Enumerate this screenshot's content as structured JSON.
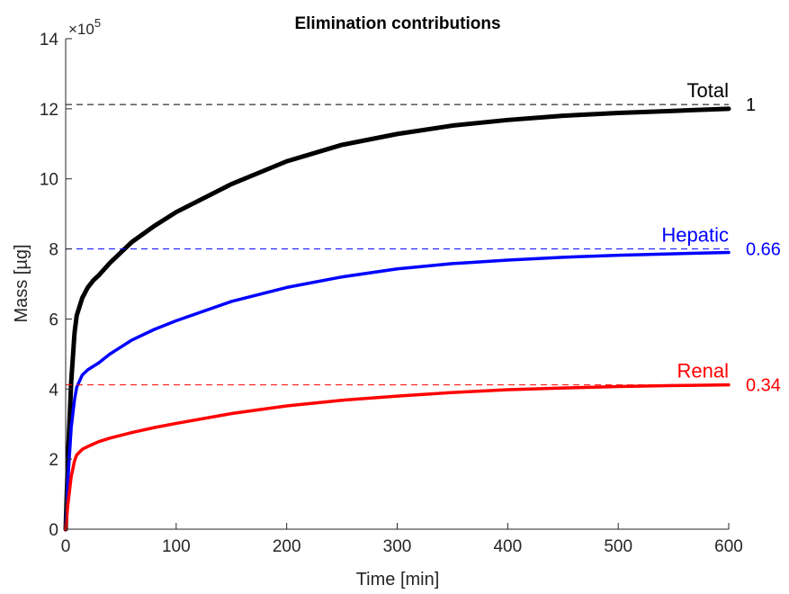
{
  "chart_data": {
    "type": "line",
    "title": "Elimination contributions",
    "xlabel": "Time [min]",
    "ylabel": "Mass [µg]",
    "xlim": [
      0,
      600
    ],
    "ylim": [
      0,
      1400000
    ],
    "x_ticks": [
      0,
      100,
      200,
      300,
      400,
      500,
      600
    ],
    "y_ticks": [
      0,
      2,
      4,
      6,
      8,
      10,
      12,
      14
    ],
    "y_tick_multiplier": "×10",
    "y_tick_exponent": "5",
    "grid": false,
    "series": [
      {
        "name": "Total",
        "color": "#000000",
        "fraction_label": "1",
        "asymptote": 1212000,
        "x": [
          0,
          2,
          5,
          8,
          10,
          15,
          20,
          25,
          30,
          40,
          50,
          60,
          80,
          100,
          150,
          200,
          250,
          300,
          350,
          400,
          450,
          500,
          550,
          600
        ],
        "y": [
          0,
          200000,
          420000,
          560000,
          610000,
          660000,
          690000,
          710000,
          725000,
          760000,
          790000,
          820000,
          865000,
          905000,
          985000,
          1050000,
          1097000,
          1128000,
          1152000,
          1168000,
          1180000,
          1188000,
          1194000,
          1200000
        ]
      },
      {
        "name": "Hepatic",
        "color": "#0000ff",
        "fraction_label": "0.66",
        "asymptote": 800000,
        "x": [
          0,
          2,
          5,
          8,
          10,
          15,
          20,
          25,
          30,
          40,
          50,
          60,
          80,
          100,
          150,
          200,
          250,
          300,
          350,
          400,
          450,
          500,
          550,
          600
        ],
        "y": [
          0,
          140000,
          290000,
          370000,
          405000,
          440000,
          455000,
          465000,
          475000,
          500000,
          520000,
          540000,
          570000,
          595000,
          650000,
          690000,
          720000,
          743000,
          758000,
          768000,
          776000,
          782000,
          786000,
          790000
        ]
      },
      {
        "name": "Renal",
        "color": "#ff0000",
        "fraction_label": "0.34",
        "asymptote": 412000,
        "x": [
          0,
          2,
          5,
          8,
          10,
          15,
          20,
          25,
          30,
          40,
          50,
          60,
          80,
          100,
          150,
          200,
          250,
          300,
          350,
          400,
          450,
          500,
          550,
          600
        ],
        "y": [
          0,
          70000,
          150000,
          195000,
          212000,
          228000,
          236000,
          243000,
          250000,
          260000,
          268000,
          276000,
          290000,
          302000,
          330000,
          352000,
          368000,
          380000,
          390000,
          398000,
          403000,
          407000,
          410000,
          412000
        ]
      }
    ]
  }
}
